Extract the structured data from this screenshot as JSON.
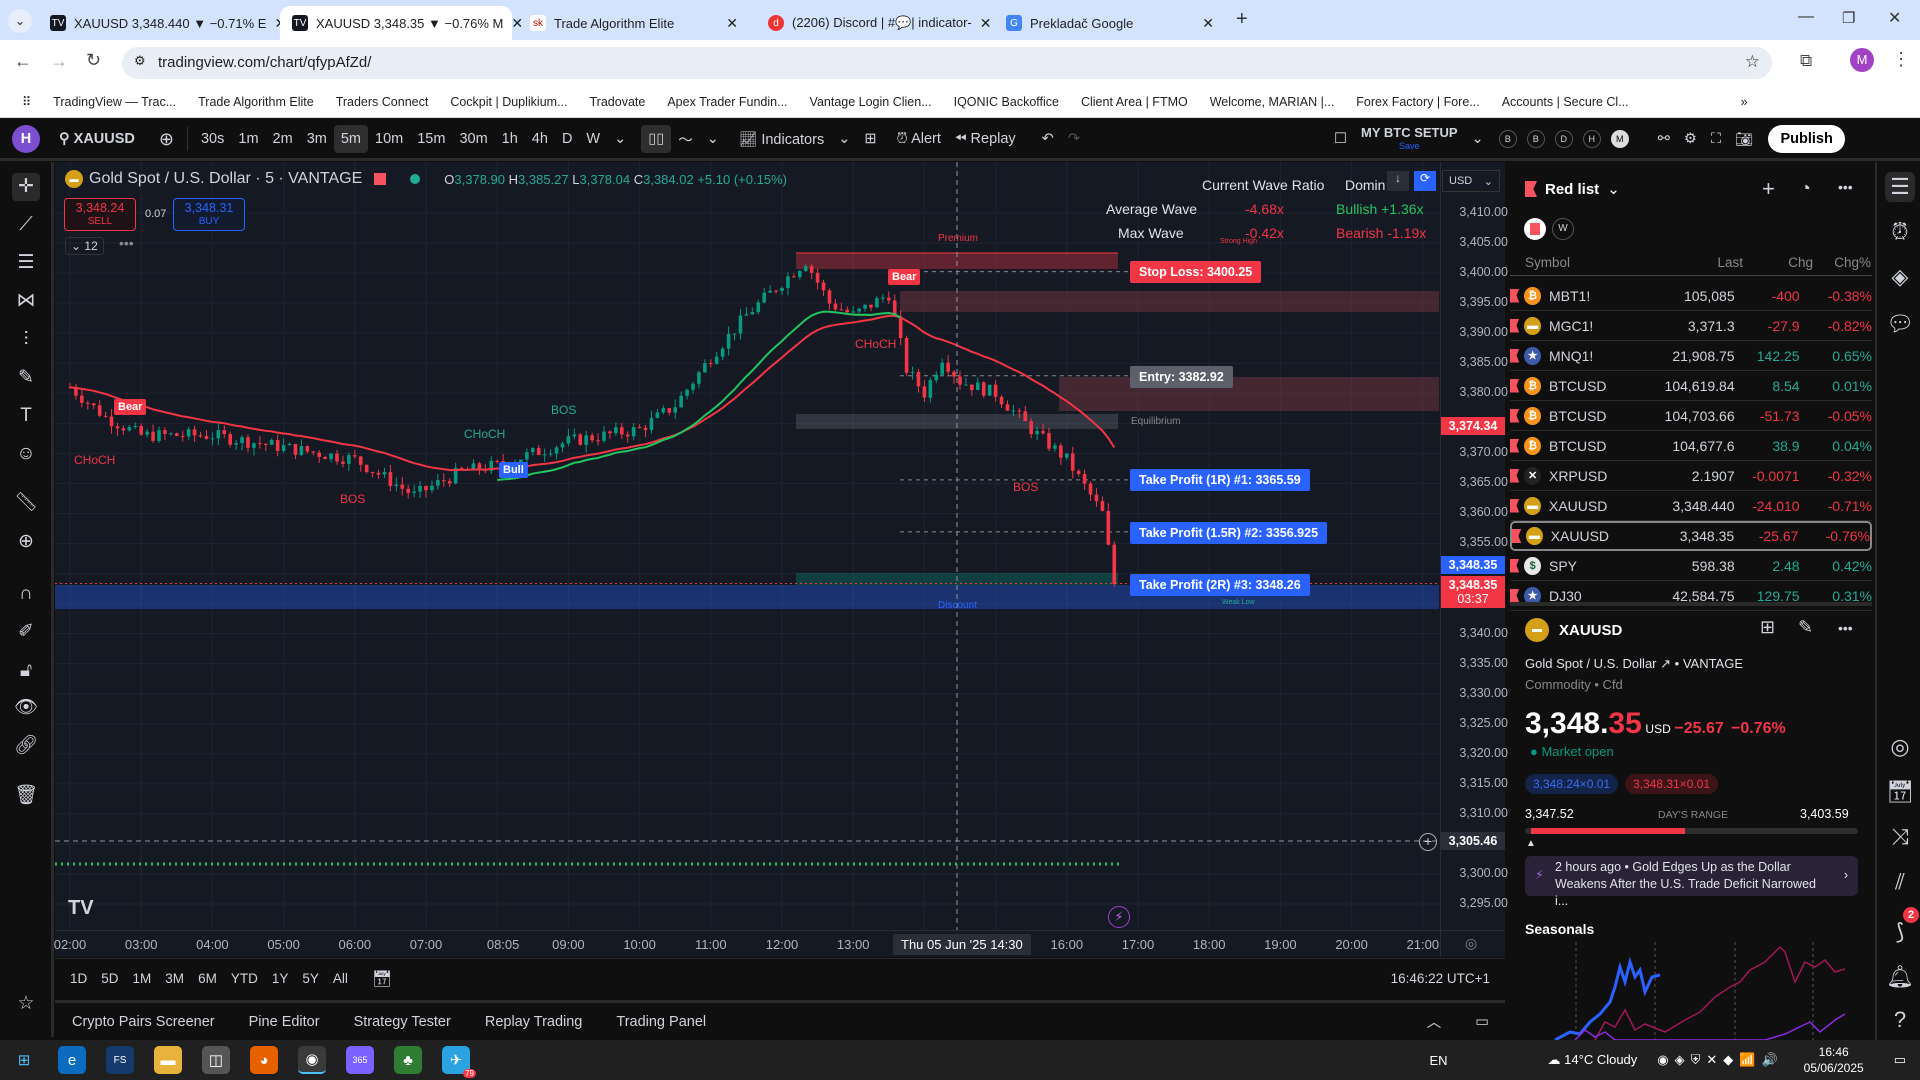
{
  "browser": {
    "tabs": [
      {
        "title": "XAUUSD 3,348.440 ▼ −0.71% E",
        "icon": "tradingview-icon",
        "active": false
      },
      {
        "title": "XAUUSD 3,348.35 ▼ −0.76% M",
        "icon": "tradingview-icon",
        "active": true
      },
      {
        "title": "Trade Algorithm Elite",
        "icon": "sk-icon",
        "active": false
      },
      {
        "title": "(2206) Discord | #💬| indicator-",
        "icon": "discord-icon",
        "active": false
      },
      {
        "title": "Prekladač Google",
        "icon": "google-translate-icon",
        "active": false
      }
    ],
    "url": "tradingview.com/chart/qfypAfZd/",
    "profile_initial": "M",
    "bookmarks": [
      "TradingView — Trac...",
      "Trade Algorithm Elite",
      "Traders Connect",
      "Cockpit | Duplikium...",
      "Tradovate",
      "Apex Trader Fundin...",
      "Vantage Login Clien...",
      "IQONIC Backoffice",
      "Client Area | FTMO",
      "Welcome, MARIAN |...",
      "Forex Factory | Fore...",
      "Accounts | Secure Cl..."
    ]
  },
  "toolbar": {
    "avatar": "H",
    "symbol": "XAUUSD",
    "intervals": [
      "30s",
      "1m",
      "2m",
      "3m",
      "5m",
      "10m",
      "15m",
      "30m",
      "1h",
      "4h",
      "D",
      "W"
    ],
    "active_interval": "5m",
    "indicators": "Indicators",
    "alert": "Alert",
    "replay": "Replay",
    "layout_name": "MY BTC SETUP",
    "layout_save": "Save",
    "circles": [
      "B",
      "B",
      "D",
      "H",
      "M"
    ],
    "publish": "Publish"
  },
  "chart": {
    "title": "Gold Spot / U.S. Dollar · 5 · VANTAGE",
    "ohlc": {
      "o_label": "O",
      "o": "3,378.90",
      "h_label": "H",
      "h": "3,385.27",
      "l_label": "L",
      "l": "3,378.04",
      "c_label": "C",
      "c": "3,384.02",
      "change": "+5.10 (+0.15%)"
    },
    "sell_price": "3,348.24",
    "sell_label": "SELL",
    "spread": "0.07",
    "buy_price": "3,348.31",
    "buy_label": "BUY",
    "indicator_count": "12",
    "currency": "USD",
    "wave_table": {
      "header1": "Current Wave Ratio",
      "header2": "Domin",
      "avg_label": "Average Wave",
      "avg_val": "-4.68x",
      "avg_dom": "Bullish +1.36x",
      "max_label": "Max Wave",
      "max_val": "-0.42x",
      "max_dom": "Bearish -1.19x"
    },
    "labels": {
      "bear1": "Bear",
      "bear2": "Bear",
      "bull": "Bull",
      "choch1": "CHoCH",
      "bos1": "BOS",
      "choch2": "CHoCH",
      "bos2": "BOS",
      "choch3": "CHoCH",
      "bos3": "BOS",
      "premium": "Premium",
      "strong_high": "Strong High",
      "equilibrium": "Equilibrium",
      "discount": "Discount",
      "weak_low": "Weak Low"
    },
    "trade": {
      "stop_loss": "Stop Loss: 3400.25",
      "entry": "Entry: 3382.92",
      "tp1": "Take Profit (1R) #1: 3365.59",
      "tp2": "Take Profit (1.5R) #2: 3356.925",
      "tp3": "Take Profit (2R) #3: 3348.26"
    },
    "price_axis": [
      "3,410.00",
      "3,405.00",
      "3,400.00",
      "3,395.00",
      "3,390.00",
      "3,385.00",
      "3,380.00",
      "3,370.00",
      "3,365.00",
      "3,360.00",
      "3,355.00",
      "3,340.00",
      "3,335.00",
      "3,330.00",
      "3,325.00",
      "3,320.00",
      "3,315.00",
      "3,310.00",
      "3,300.00",
      "3,295.00"
    ],
    "price_badges": {
      "level": "3,374.34",
      "bid": "3,348.35",
      "last": "3,348.35",
      "countdown": "03:37",
      "crosshair": "3,305.46"
    },
    "time_axis": [
      "02:00",
      "03:00",
      "04:00",
      "05:00",
      "06:00",
      "07:00",
      "08:05",
      "09:00",
      "10:00",
      "11:00",
      "12:00",
      "13:00",
      "16:00",
      "17:00",
      "18:00",
      "19:00",
      "20:00",
      "21:00"
    ],
    "crosshair_time": "Thu 05 Jun '25  14:30",
    "price_path": [
      [
        "02:00",
        3381
      ],
      [
        "02:30",
        3376
      ],
      [
        "03:00",
        3373
      ],
      [
        "04:00",
        3373
      ],
      [
        "05:00",
        3371
      ],
      [
        "06:00",
        3369
      ],
      [
        "06:50",
        3363
      ],
      [
        "07:30",
        3367
      ],
      [
        "08:00",
        3368
      ],
      [
        "09:00",
        3372
      ],
      [
        "10:00",
        3374
      ],
      [
        "10:30",
        3378
      ],
      [
        "11:00",
        3386
      ],
      [
        "11:30",
        3393
      ],
      [
        "12:00",
        3398.5
      ],
      [
        "12:20",
        3402
      ],
      [
        "12:40",
        3395
      ],
      [
        "13:00",
        3393
      ],
      [
        "13:30",
        3396.5
      ],
      [
        "13:45",
        3384
      ],
      [
        "14:00",
        3380
      ],
      [
        "14:15",
        3386
      ],
      [
        "14:30",
        3382
      ],
      [
        "15:00",
        3380
      ],
      [
        "15:30",
        3374
      ],
      [
        "16:00",
        3369
      ],
      [
        "16:30",
        3360
      ],
      [
        "16:40",
        3348.35
      ]
    ],
    "colors": {
      "up": "#089981",
      "down": "#f23645",
      "ema_red": "#f23645",
      "ema_green": "#22c55e",
      "accent": "#2962ff"
    }
  },
  "range_bar": {
    "ranges": [
      "1D",
      "5D",
      "1M",
      "3M",
      "6M",
      "YTD",
      "1Y",
      "5Y",
      "All"
    ],
    "clock": "16:46:22 UTC+1"
  },
  "bottom_tabs": [
    "Crypto Pairs Screener",
    "Pine Editor",
    "Strategy Tester",
    "Replay Trading",
    "Trading Panel"
  ],
  "watchlist": {
    "title": "Red list",
    "tag": "W",
    "columns": [
      "Symbol",
      "Last",
      "Chg",
      "Chg%"
    ],
    "rows": [
      {
        "symbol": "MBT1!",
        "icon": "bitcoin-icon",
        "last": "105,085",
        "chg": "-400",
        "pct": "-0.38%",
        "dir": "dn"
      },
      {
        "symbol": "MGC1!",
        "icon": "gold-icon",
        "last": "3,371.3",
        "chg": "-27.9",
        "pct": "-0.82%",
        "dir": "dn"
      },
      {
        "symbol": "MNQ1!",
        "icon": "us-flag-icon",
        "last": "21,908.75",
        "chg": "142.25",
        "pct": "0.65%",
        "dir": "up"
      },
      {
        "symbol": "BTCUSD",
        "icon": "bitcoin-icon",
        "last": "104,619.84",
        "chg": "8.54",
        "pct": "0.01%",
        "dir": "up"
      },
      {
        "symbol": "BTCUSD",
        "icon": "bitcoin-icon",
        "last": "104,703.66",
        "chg": "-51.73",
        "pct": "-0.05%",
        "dir": "dn"
      },
      {
        "symbol": "BTCUSD",
        "icon": "bitcoin-icon",
        "last": "104,677.6",
        "chg": "38.9",
        "pct": "0.04%",
        "dir": "up"
      },
      {
        "symbol": "XRPUSD",
        "icon": "xrp-icon",
        "last": "2.1907",
        "chg": "-0.0071",
        "pct": "-0.32%",
        "dir": "dn"
      },
      {
        "symbol": "XAUUSD",
        "icon": "gold-icon",
        "last": "3,348.440",
        "chg": "-24.010",
        "pct": "-0.71%",
        "dir": "dn"
      },
      {
        "symbol": "XAUUSD",
        "icon": "gold-icon",
        "last": "3,348.35",
        "chg": "-25.67",
        "pct": "-0.76%",
        "dir": "dn",
        "selected": true
      },
      {
        "symbol": "SPY",
        "icon": "spy-icon",
        "last": "598.38",
        "chg": "2.48",
        "pct": "0.42%",
        "dir": "up"
      },
      {
        "symbol": "DJ30",
        "icon": "us-flag-icon",
        "last": "42,584.75",
        "chg": "129.75",
        "pct": "0.31%",
        "dir": "up"
      }
    ]
  },
  "details": {
    "symbol": "XAUUSD",
    "name": "Gold Spot / U.S. Dollar",
    "exchange": "VANTAGE",
    "category": "Commodity • Cfd",
    "price_main": "3,348.",
    "price_frac": "35",
    "currency": "USD",
    "change": "−25.67",
    "change_pct": "−0.76%",
    "market_status": "Market open",
    "bid": "3,348.24×0.01",
    "ask": "3,348.31×0.01",
    "range_low": "3,347.52",
    "range_label": "DAY'S RANGE",
    "range_high": "3,403.59",
    "range_fill_pct": 47,
    "news_time": "2 hours ago",
    "news_text": "Gold Edges Up as the Dollar Weakens After the U.S. Trade Deficit Narrowed i...",
    "seasonals": "Seasonals"
  },
  "right_icons_badge": "2",
  "taskbar": {
    "lang": "EN",
    "weather": "14°C  Cloudy",
    "time": "16:46",
    "date": "05/06/2025",
    "telegram_badge": "79"
  }
}
